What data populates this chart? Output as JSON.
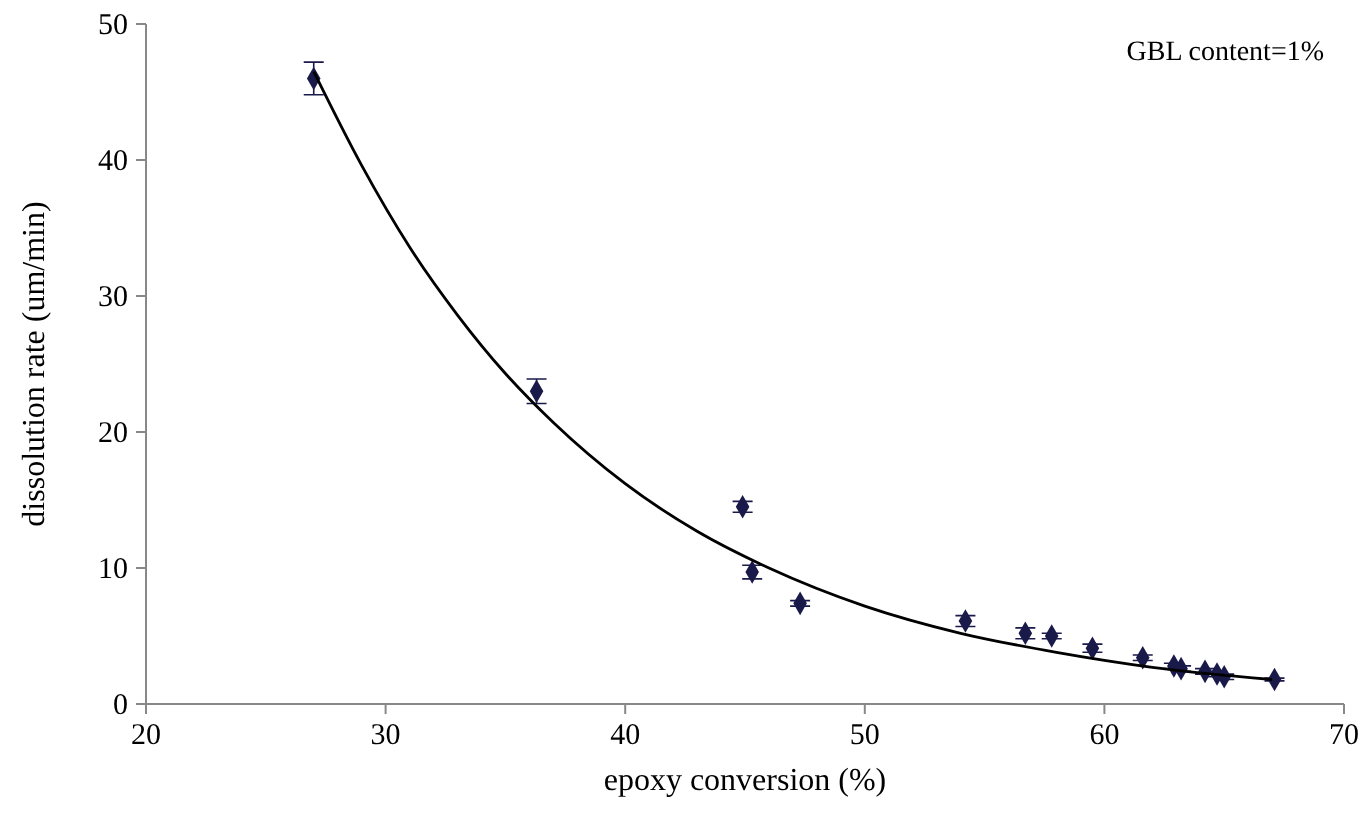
{
  "chart_data": {
    "type": "scatter",
    "xlabel": "epoxy conversion (%)",
    "ylabel": "dissolution rate (um/min)",
    "annotations": [
      "GBL content=1%"
    ],
    "xlim": [
      20,
      70
    ],
    "ylim": [
      0,
      50
    ],
    "xticks": [
      20,
      30,
      40,
      50,
      60,
      70
    ],
    "yticks": [
      0,
      10,
      20,
      30,
      40,
      50
    ],
    "grid": false,
    "series": [
      {
        "color": "#1a1a4a",
        "x": [
          27.0,
          36.3,
          44.9,
          45.3,
          47.3,
          54.2,
          56.7,
          57.8,
          59.5,
          61.6,
          62.9,
          63.2,
          64.2,
          64.7,
          65.0,
          67.1
        ],
        "values": [
          46,
          23,
          14.5,
          9.7,
          7.4,
          6.1,
          5.2,
          5.0,
          4.1,
          3.4,
          2.8,
          2.6,
          2.4,
          2.2,
          2.0,
          1.8
        ],
        "errors": [
          1.2,
          0.9,
          0.4,
          0.5,
          0.2,
          0.4,
          0.4,
          0.2,
          0.3,
          0.2,
          0.2,
          0.2,
          0.2,
          0.2,
          0.2,
          0.1
        ]
      },
      {
        "type": "line",
        "marker": "none",
        "color": "#000000",
        "x": [
          27,
          29,
          31,
          33,
          35,
          37,
          40,
          43,
          46,
          50,
          54,
          58,
          62,
          67
        ],
        "values": [
          46.5,
          39.6,
          33.6,
          28.6,
          24.3,
          20.7,
          16.2,
          12.7,
          10.0,
          7.2,
          5.2,
          3.8,
          2.7,
          1.8
        ]
      }
    ]
  }
}
